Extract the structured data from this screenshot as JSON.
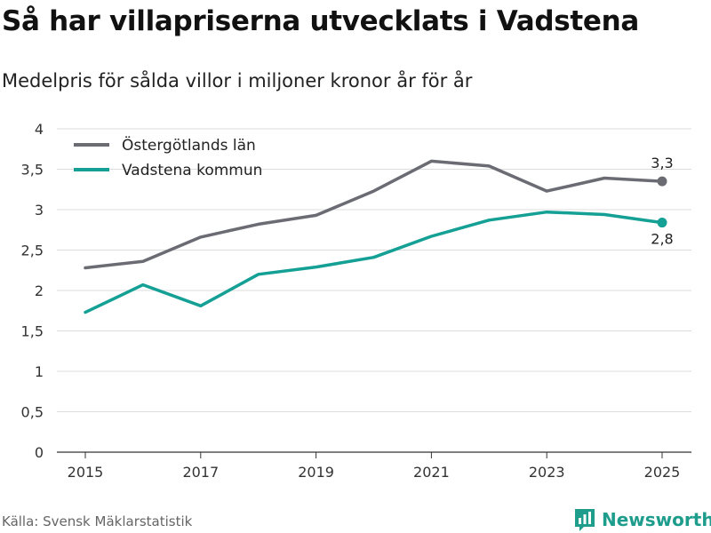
{
  "title": "Så har villapriserna utvecklats i Vadstena",
  "subtitle": "Medelpris för sålda villor i miljoner kronor år för år",
  "source": "Källa: Svensk Mäklarstatistik",
  "brand": "Newsworthy",
  "colors": {
    "ostergotland": "#6b6b73",
    "vadstena": "#14a095",
    "brand": "#1e9c8c",
    "grid": "#dcdcdc"
  },
  "chart_data": {
    "type": "line",
    "x": [
      2015,
      2016,
      2017,
      2018,
      2019,
      2020,
      2021,
      2022,
      2023,
      2024,
      2025
    ],
    "xticks": [
      "2015",
      "2017",
      "2019",
      "2021",
      "2023",
      "2025"
    ],
    "ylim": [
      0,
      4
    ],
    "yticks": [
      "0",
      "0,5",
      "1",
      "1,5",
      "2",
      "2,5",
      "3",
      "3,5",
      "4"
    ],
    "series": [
      {
        "name": "Östergötlands län",
        "values": [
          2.28,
          2.36,
          2.66,
          2.82,
          2.93,
          3.23,
          3.6,
          3.54,
          3.23,
          3.39,
          3.35
        ],
        "end_label": "3,3"
      },
      {
        "name": "Vadstena kommun",
        "values": [
          1.73,
          2.07,
          1.81,
          2.2,
          2.29,
          2.41,
          2.67,
          2.87,
          2.97,
          2.94,
          2.84
        ],
        "end_label": "2,8"
      }
    ],
    "legend": "top-left"
  }
}
